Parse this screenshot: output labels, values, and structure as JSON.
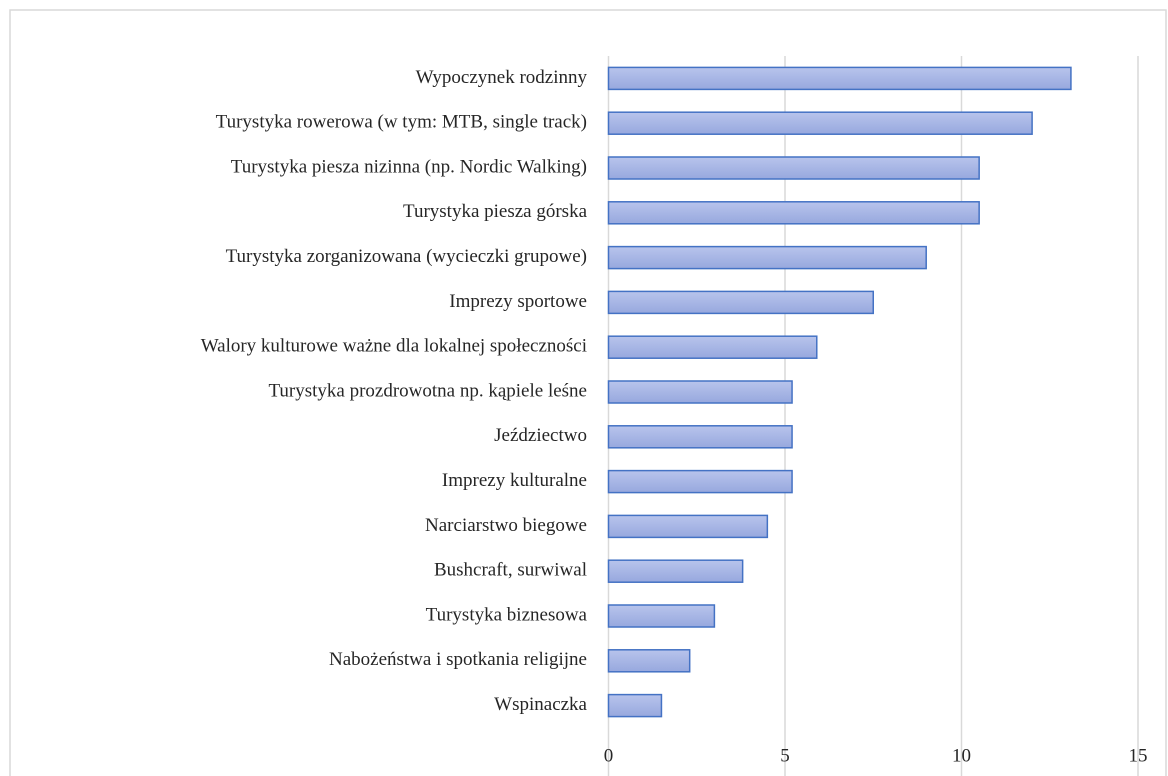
{
  "chart_data": {
    "type": "hbar",
    "categories": [
      "Wypoczynek rodzinny",
      "Turystyka rowerowa (w tym: MTB, single track)",
      "Turystyka piesza nizinna (np. Nordic Walking)",
      "Turystyka piesza górska",
      "Turystyka zorganizowana (wycieczki grupowe)",
      "Imprezy sportowe",
      "Walory kulturowe ważne dla lokalnej społeczności",
      "Turystyka prozdrowotna np. kąpiele leśne",
      "Jeździectwo",
      "Imprezy kulturalne",
      "Narciarstwo biegowe",
      "Bushcraft, surwiwal",
      "Turystyka biznesowa",
      "Nabożeństwa i spotkania religijne",
      "Wspinaczka"
    ],
    "values": [
      13.1,
      12.0,
      10.5,
      10.5,
      9.0,
      7.5,
      5.9,
      5.2,
      5.2,
      5.2,
      4.5,
      3.8,
      3.0,
      2.3,
      1.5
    ],
    "color": "#a9b8e6",
    "edge_color": "#4472c4",
    "xlim": [
      0,
      15
    ],
    "xticks": [
      0,
      5,
      10,
      15
    ],
    "grid": true
  }
}
